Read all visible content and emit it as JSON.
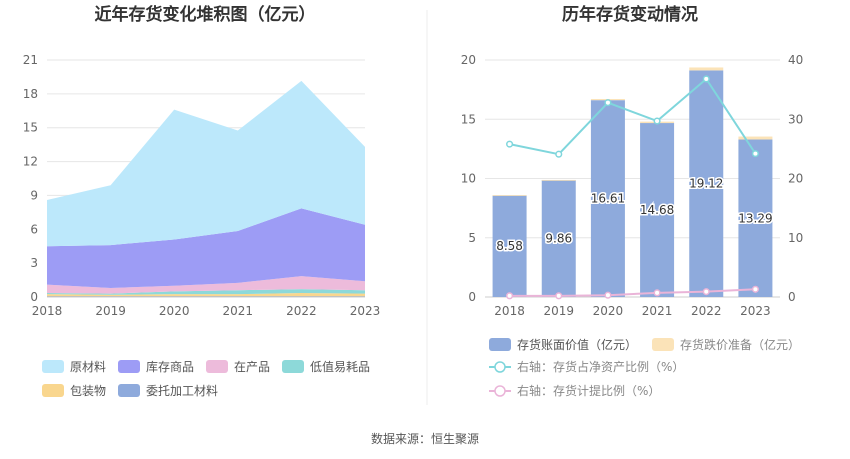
{
  "source_text": "数据来源：恒生聚源",
  "chart_data": [
    {
      "type": "area",
      "stacked": true,
      "title": "近年存货变化堆积图（亿元）",
      "categories": [
        "2018",
        "2019",
        "2020",
        "2021",
        "2022",
        "2023"
      ],
      "y_ticks": [
        "0",
        "3",
        "6",
        "9",
        "12",
        "15",
        "18",
        "21"
      ],
      "ylim": [
        0,
        21
      ],
      "grid": true,
      "legend_position": "bottom",
      "series": [
        {
          "name": "委托加工材料",
          "color": "#8eaadc",
          "values": [
            0.05,
            0.05,
            0.05,
            0.05,
            0.05,
            0.05
          ]
        },
        {
          "name": "包装物",
          "color": "#f9d68e",
          "values": [
            0.2,
            0.15,
            0.2,
            0.2,
            0.3,
            0.25
          ]
        },
        {
          "name": "低值易耗品",
          "color": "#8dd9d9",
          "values": [
            0.1,
            0.1,
            0.25,
            0.35,
            0.35,
            0.3
          ]
        },
        {
          "name": "在产品",
          "color": "#edbbdb",
          "values": [
            0.75,
            0.5,
            0.5,
            0.65,
            1.15,
            0.8
          ]
        },
        {
          "name": "库存商品",
          "color": "#9d9cf5",
          "values": [
            3.4,
            3.8,
            4.1,
            4.6,
            6.0,
            5.0
          ]
        },
        {
          "name": "原材料",
          "color": "#bce8fb",
          "values": [
            4.1,
            5.3,
            11.5,
            8.9,
            11.3,
            6.9
          ]
        }
      ]
    },
    {
      "type": "bar",
      "title": "历年存货变动情况",
      "categories": [
        "2018",
        "2019",
        "2020",
        "2021",
        "2022",
        "2023"
      ],
      "y_left_ticks": [
        "0",
        "5",
        "10",
        "15",
        "20"
      ],
      "y_right_ticks": [
        "0",
        "10",
        "20",
        "30",
        "40"
      ],
      "ylim_left": [
        0,
        20
      ],
      "ylim_right": [
        0,
        40
      ],
      "grid": true,
      "legend_position": "bottom",
      "series": [
        {
          "name": "存货账面价值（亿元）",
          "color": "#8eaadc",
          "axis": "left",
          "kind": "bar",
          "values": [
            8.58,
            9.86,
            16.61,
            14.68,
            19.12,
            13.29
          ],
          "labels": [
            "8.58",
            "9.86",
            "16.61",
            "14.68",
            "19.12",
            "13.29"
          ]
        },
        {
          "name": "存货跌价准备（亿元）",
          "color": "#fbe3b8",
          "axis": "left",
          "kind": "bar",
          "values": [
            0.02,
            0.02,
            0.1,
            0.12,
            0.25,
            0.25
          ]
        },
        {
          "name": "右轴：存货占净资产比例（%）",
          "color": "#7fd6dc",
          "axis": "right",
          "kind": "line",
          "values": [
            25.8,
            24.1,
            32.8,
            29.7,
            36.8,
            24.2
          ]
        },
        {
          "name": "右轴：存货计提比例（%）",
          "color": "#eab4d8",
          "axis": "right",
          "kind": "line",
          "values": [
            0.2,
            0.2,
            0.3,
            0.7,
            0.9,
            1.3
          ]
        }
      ]
    }
  ]
}
